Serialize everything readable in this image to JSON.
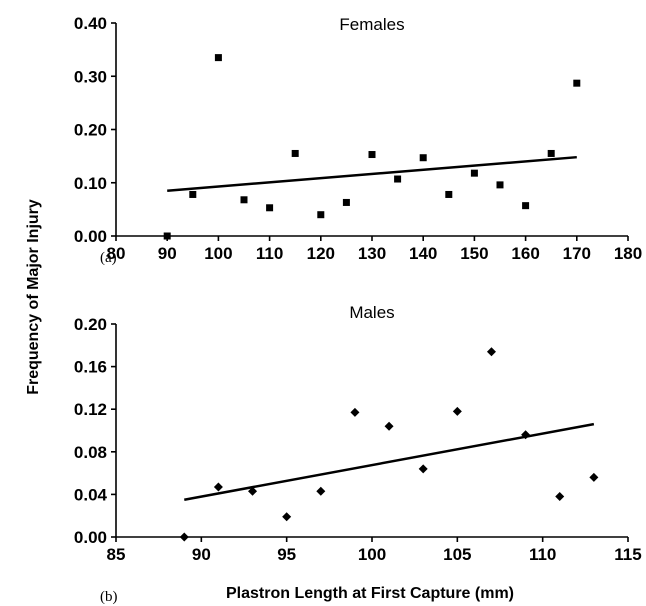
{
  "shared": {
    "ylabel": "Frequency of Major Injury",
    "xlabel": "Plastron Length at First Capture (mm)"
  },
  "chart_data": [
    {
      "type": "scatter",
      "panel_label": "(a)",
      "title": "Females",
      "xlim": [
        80,
        180
      ],
      "ylim": [
        0,
        0.4
      ],
      "x_ticks": [
        "80",
        "90",
        "100",
        "110",
        "120",
        "130",
        "140",
        "150",
        "160",
        "170",
        "180"
      ],
      "y_ticks": [
        "0.00",
        "0.10",
        "0.20",
        "0.30",
        "0.40"
      ],
      "marker": "square",
      "points": {
        "x": [
          90,
          95,
          100,
          105,
          110,
          115,
          120,
          125,
          130,
          135,
          140,
          145,
          150,
          155,
          160,
          165,
          170
        ],
        "y": [
          0.0,
          0.078,
          0.335,
          0.068,
          0.053,
          0.155,
          0.04,
          0.063,
          0.153,
          0.107,
          0.147,
          0.078,
          0.118,
          0.096,
          0.057,
          0.155,
          0.287
        ]
      },
      "trendline": {
        "x": [
          90,
          170
        ],
        "y": [
          0.085,
          0.148
        ]
      }
    },
    {
      "type": "scatter",
      "panel_label": "(b)",
      "title": "Males",
      "xlim": [
        85,
        115
      ],
      "ylim": [
        0,
        0.2
      ],
      "x_ticks": [
        "85",
        "90",
        "95",
        "100",
        "105",
        "110",
        "115"
      ],
      "y_ticks": [
        "0.00",
        "0.04",
        "0.08",
        "0.12",
        "0.16",
        "0.20"
      ],
      "marker": "diamond",
      "points": {
        "x": [
          89,
          91,
          93,
          95,
          97,
          99,
          101,
          103,
          105,
          107,
          109,
          111,
          113
        ],
        "y": [
          0.0,
          0.047,
          0.043,
          0.019,
          0.043,
          0.117,
          0.104,
          0.064,
          0.118,
          0.174,
          0.096,
          0.038,
          0.056
        ]
      },
      "trendline": {
        "x": [
          89,
          113
        ],
        "y": [
          0.035,
          0.106
        ]
      }
    }
  ]
}
